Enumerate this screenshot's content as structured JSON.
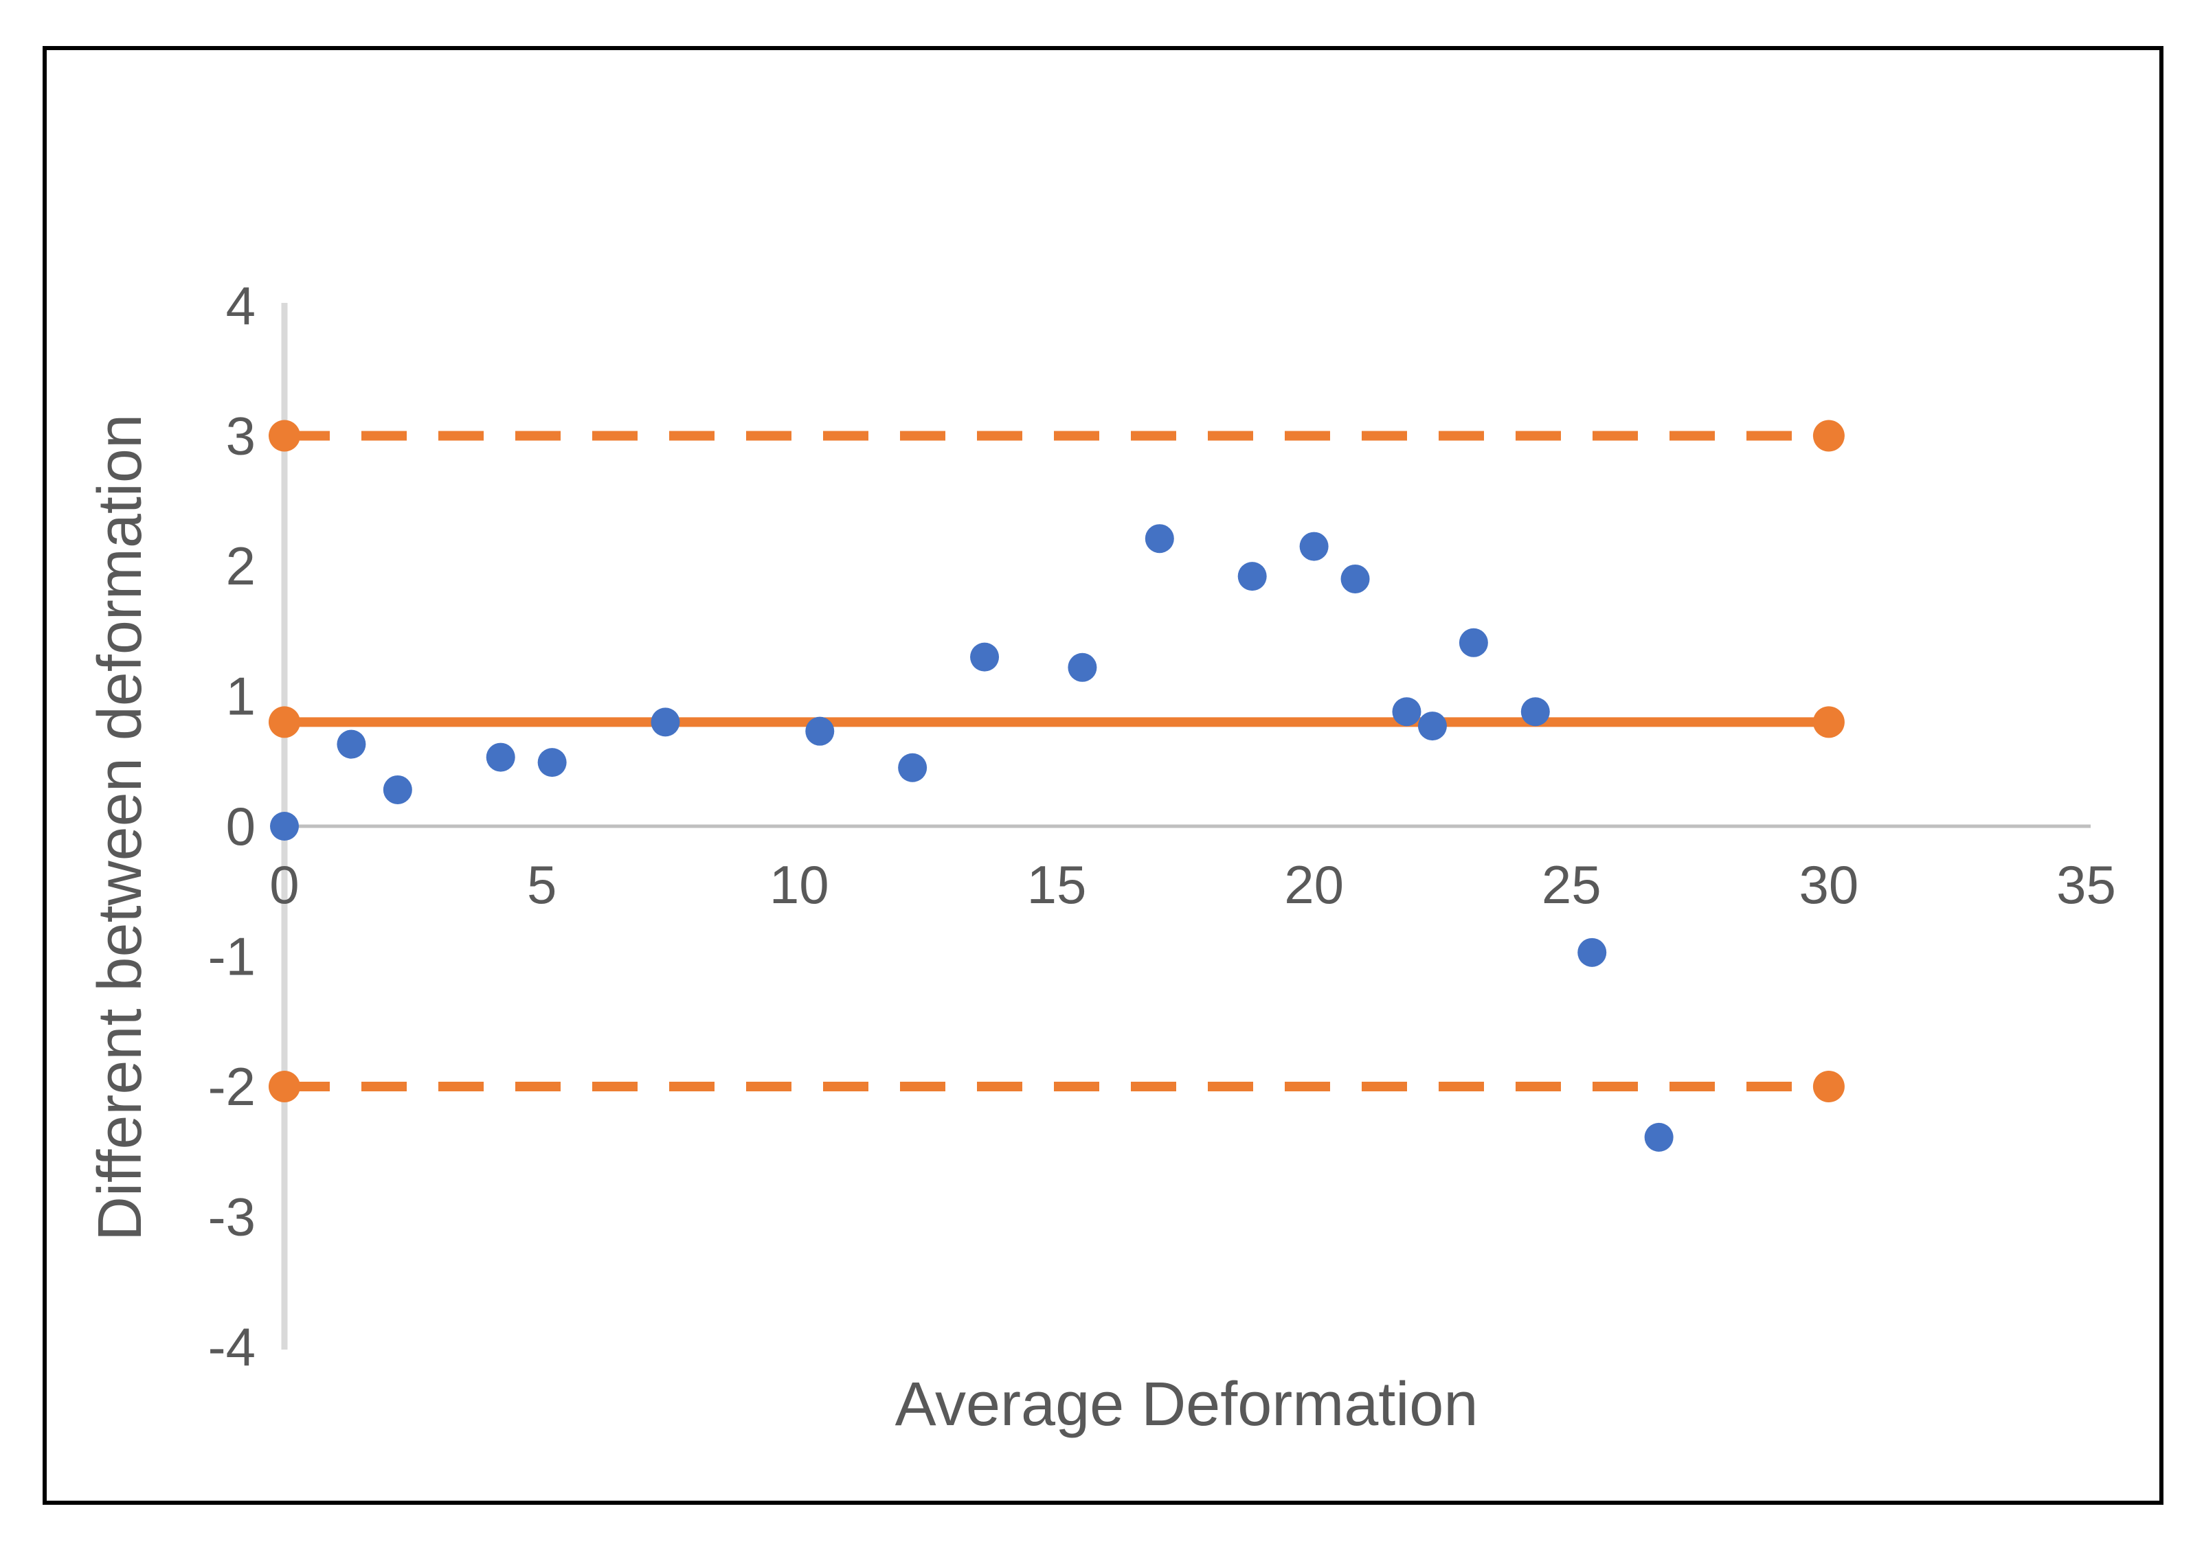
{
  "figure": {
    "background": "#ffffff",
    "border_color": "#000000"
  },
  "chart_data": {
    "type": "scatter",
    "title": "",
    "xlabel": "Average Deformation",
    "ylabel": "Different between deformation",
    "xlim": [
      0,
      35
    ],
    "ylim": [
      -4,
      4
    ],
    "x_ticks": [
      "0",
      "5",
      "10",
      "15",
      "20",
      "25",
      "30",
      "35"
    ],
    "y_ticks": [
      "4",
      "3",
      "2",
      "1",
      "0",
      "-1",
      "-2",
      "-3",
      "-4"
    ],
    "grid": false,
    "legend_position": "none",
    "colors": {
      "points": "#4472C4",
      "reference_lines": "#ED7D31",
      "x_axis_line": "#BFBFBF",
      "y_axis_line": "#D9D9D9",
      "tick_labels": "#595959",
      "axis_titles": "#595959"
    },
    "series": [
      {
        "name": "difference-points",
        "type": "scatter",
        "points": [
          [
            0,
            0
          ],
          [
            1.3,
            0.63
          ],
          [
            2.2,
            0.28
          ],
          [
            4.2,
            0.53
          ],
          [
            5.2,
            0.49
          ],
          [
            7.4,
            0.8
          ],
          [
            10.4,
            0.73
          ],
          [
            12.2,
            0.45
          ],
          [
            13.6,
            1.3
          ],
          [
            15.5,
            1.22
          ],
          [
            17.0,
            2.21
          ],
          [
            18.8,
            1.92
          ],
          [
            20.0,
            2.15
          ],
          [
            20.8,
            1.9
          ],
          [
            21.8,
            0.88
          ],
          [
            22.3,
            0.77
          ],
          [
            23.1,
            1.41
          ],
          [
            24.3,
            0.88
          ],
          [
            25.4,
            -0.97
          ],
          [
            26.7,
            -2.39
          ]
        ]
      }
    ],
    "reference_lines": [
      {
        "name": "mean-line",
        "y": 0.8,
        "style": "solid",
        "x_start": 0,
        "x_end": 30,
        "end_markers": true
      },
      {
        "name": "upper-limit-line",
        "y": 3,
        "style": "dashed",
        "x_start": 0,
        "x_end": 30,
        "end_markers": true
      },
      {
        "name": "lower-limit-line",
        "y": -2,
        "style": "dashed",
        "x_start": 0,
        "x_end": 30,
        "end_markers": true
      }
    ]
  }
}
